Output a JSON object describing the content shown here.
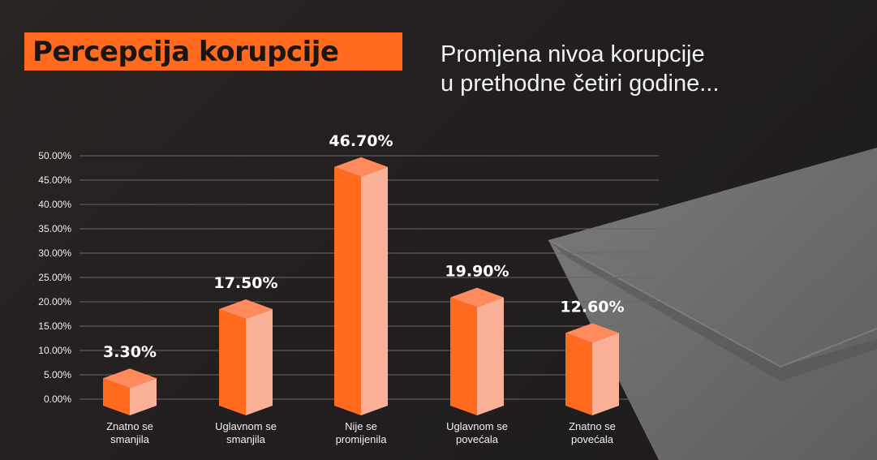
{
  "header": {
    "title": "Percepcija korupcije",
    "subtitle_line1": "Promjena nivoa korupcije",
    "subtitle_line2": "u prethodne četiri godine..."
  },
  "colors": {
    "accent": "#ff6a1f",
    "bar_front": "#ff6a1f",
    "bar_side": "#f9b096",
    "bar_top": "#ff8a5c",
    "gridline": "#6b6665",
    "text": "#ffffff",
    "background": "#231f20"
  },
  "chart_data": {
    "type": "bar",
    "categories": [
      [
        "Znatno se",
        "smanjila"
      ],
      [
        "Uglavnom se",
        "smanjila"
      ],
      [
        "Nije se",
        "promijenila"
      ],
      [
        "Uglavnom se",
        "povećala"
      ],
      [
        "Znatno se",
        "povećala"
      ]
    ],
    "values": [
      3.3,
      17.5,
      46.7,
      19.9,
      12.6
    ],
    "data_labels": [
      "3.30%",
      "17.50%",
      "46.70%",
      "19.90%",
      "12.60%"
    ],
    "yticks": [
      "0.00%",
      "5.00%",
      "10.00%",
      "15.00%",
      "20.00%",
      "25.00%",
      "30.00%",
      "35.00%",
      "40.00%",
      "45.00%",
      "50.00%"
    ],
    "ylim": [
      0,
      50
    ],
    "grid": true,
    "style": "3d-isometric-bars"
  }
}
